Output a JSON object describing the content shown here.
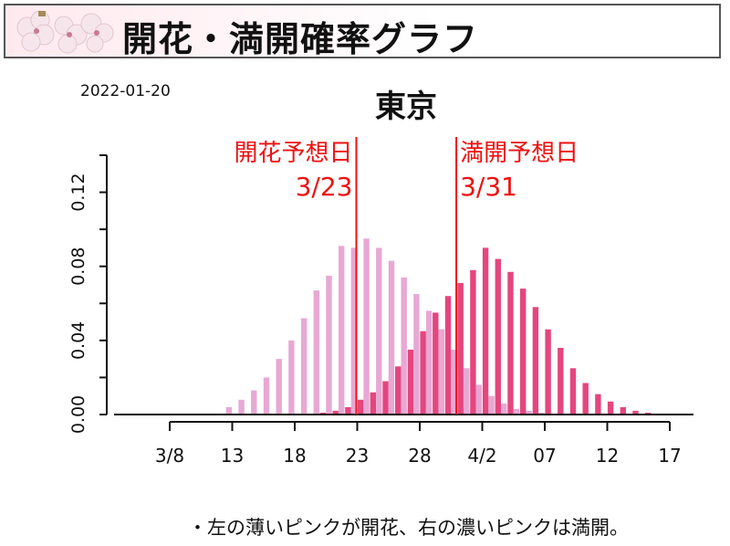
{
  "header": {
    "title": "開花・満開確率グラフ",
    "logo_icon": "cherry-blossom-icon"
  },
  "date": "2022-01-20",
  "footnote": "・左の薄いピンクが開花、右の濃いピンクは満開。",
  "colors": {
    "bloom": "#e8a8d4",
    "full": "#e4467e",
    "marker": "#ee1111",
    "axis": "#111111"
  },
  "chart_data": {
    "type": "bar",
    "title": "東京",
    "xlabel": "",
    "ylabel": "",
    "x_start": "3/3",
    "days": 45,
    "ylim": [
      0,
      0.14
    ],
    "yticks": [
      "0.00",
      "0.04",
      "0.08",
      "0.12"
    ],
    "ytick_values": [
      0,
      0.04,
      0.08,
      0.12
    ],
    "xticks": [
      {
        "label": "3/8",
        "day_index": 5
      },
      {
        "label": "13",
        "day_index": 10
      },
      {
        "label": "18",
        "day_index": 15
      },
      {
        "label": "23",
        "day_index": 20
      },
      {
        "label": "28",
        "day_index": 25
      },
      {
        "label": "4/2",
        "day_index": 30
      },
      {
        "label": "07",
        "day_index": 35
      },
      {
        "label": "12",
        "day_index": 40
      },
      {
        "label": "17",
        "day_index": 45
      }
    ],
    "series": [
      {
        "name": "開花",
        "start_index": 10,
        "values": [
          0.004,
          0.008,
          0.013,
          0.02,
          0.03,
          0.04,
          0.052,
          0.067,
          0.075,
          0.091,
          0.09,
          0.095,
          0.09,
          0.083,
          0.074,
          0.065,
          0.056,
          0.046,
          0.035,
          0.025,
          0.016,
          0.01,
          0.006,
          0.003,
          0.002,
          0.001
        ]
      },
      {
        "name": "満開",
        "start_index": 17,
        "values": [
          0.001,
          0.002,
          0.004,
          0.008,
          0.012,
          0.018,
          0.026,
          0.035,
          0.045,
          0.055,
          0.064,
          0.071,
          0.078,
          0.09,
          0.084,
          0.077,
          0.068,
          0.058,
          0.046,
          0.036,
          0.025,
          0.017,
          0.011,
          0.007,
          0.004,
          0.002,
          0.001
        ]
      }
    ],
    "annotations": [
      {
        "label": "開花予想日",
        "date": "3/23",
        "day_index": 20,
        "side": "left"
      },
      {
        "label": "満開予想日",
        "date": "3/31",
        "day_index": 28,
        "side": "right"
      }
    ]
  }
}
